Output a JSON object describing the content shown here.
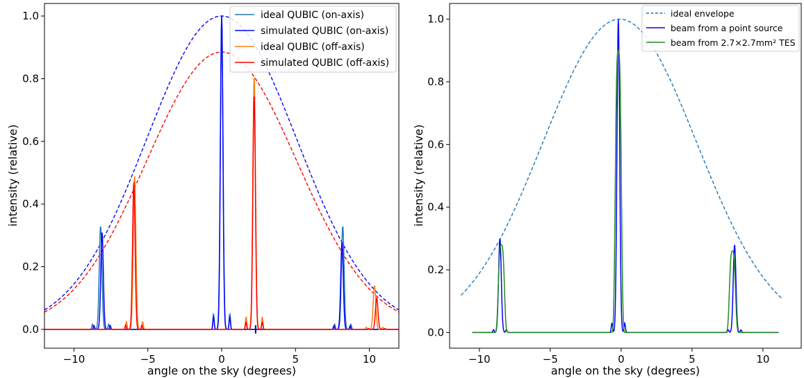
{
  "chart_data": [
    {
      "type": "line",
      "xlabel": "angle on the sky (degrees)",
      "ylabel": "intensity (relative)",
      "xlim": [
        -12,
        12
      ],
      "ylim": [
        -0.06,
        1.04
      ],
      "xticks": [
        -10,
        -5,
        0,
        5,
        10
      ],
      "xtick_labels": [
        "−10",
        "−5",
        "0",
        "5",
        "10"
      ],
      "yticks": [
        0.0,
        0.2,
        0.4,
        0.6,
        0.8,
        1.0
      ],
      "ytick_labels": [
        "0.0",
        "0.2",
        "0.4",
        "0.6",
        "0.8",
        "1.0"
      ],
      "legend_position": "top-right",
      "series": [
        {
          "name": "ideal QUBIC (on-axis)",
          "color": "#1f77b4",
          "style": "solid",
          "peaks": [
            [
              0,
              1.0
            ],
            [
              -8.2,
              0.33
            ],
            [
              8.2,
              0.33
            ]
          ]
        },
        {
          "name": "simulated QUBIC (on-axis)",
          "color": "#0000ff",
          "style": "solid",
          "peaks": [
            [
              0,
              1.0
            ],
            [
              -8.1,
              0.31
            ],
            [
              8.15,
              0.28
            ]
          ]
        },
        {
          "name": "ideal QUBIC (off-axis)",
          "color": "#ff7f0e",
          "style": "solid",
          "peaks": [
            [
              2.2,
              0.81
            ],
            [
              -5.9,
              0.49
            ],
            [
              10.35,
              0.14
            ]
          ]
        },
        {
          "name": "simulated QUBIC (off-axis)",
          "color": "#ff0000",
          "style": "solid",
          "peaks": [
            [
              2.2,
              0.75
            ],
            [
              -5.95,
              0.47
            ],
            [
              10.5,
              0.1
            ]
          ]
        }
      ],
      "envelopes": [
        {
          "color": "#0000ff",
          "style": "dashed",
          "center": 0,
          "peak": 1.0,
          "value_at_12": 0.062
        },
        {
          "color": "#ff0000",
          "style": "dashed",
          "center": 0,
          "peak": 0.885,
          "value_at_12": 0.055
        }
      ],
      "marker": {
        "x": 2.3,
        "color": "#000080"
      }
    },
    {
      "type": "line",
      "xlabel": "angle on the sky (degrees)",
      "ylabel": "intensity (relative)",
      "xlim": [
        -12.1,
        12.7
      ],
      "ylim": [
        -0.05,
        1.05
      ],
      "xticks": [
        -10,
        -5,
        0,
        5,
        10
      ],
      "xtick_labels": [
        "−10",
        "−5",
        "0",
        "5",
        "10"
      ],
      "yticks": [
        0.0,
        0.2,
        0.4,
        0.6,
        0.8,
        1.0
      ],
      "ytick_labels": [
        "0.0",
        "0.2",
        "0.4",
        "0.6",
        "0.8",
        "1.0"
      ],
      "legend_position": "top-right",
      "series": [
        {
          "name": "ideal envelope",
          "color": "#1f77b4",
          "style": "dashed",
          "x_range": [
            -11.3,
            11.3
          ],
          "center": -0.1,
          "peak": 1.0,
          "value_at_ends": 0.11
        },
        {
          "name": "beam from a point source",
          "color": "#0000ff",
          "style": "solid",
          "peaks": [
            [
              -0.2,
              1.0
            ],
            [
              -8.55,
              0.3
            ],
            [
              8.0,
              0.28
            ]
          ]
        },
        {
          "name": "beam from 2.7×2.7mm² TES",
          "color": "#228b22",
          "style": "solid",
          "peaks": [
            [
              -0.2,
              0.9
            ],
            [
              -8.45,
              0.28
            ],
            [
              7.85,
              0.26
            ]
          ]
        }
      ]
    }
  ]
}
